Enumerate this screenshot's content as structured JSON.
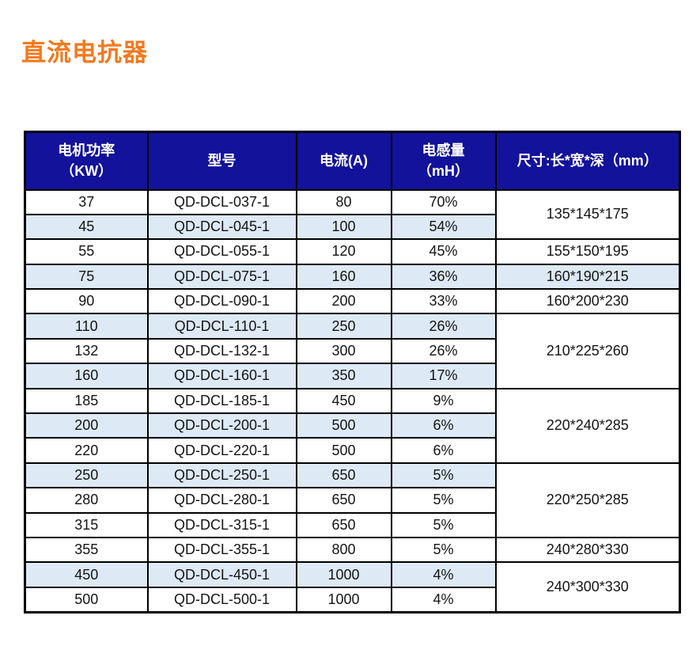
{
  "page": {
    "title": "直流电抗器"
  },
  "colors": {
    "title": "#F2791E",
    "header_bg": "#12129B",
    "header_text": "#FFFFFF",
    "alt_row_bg": "#DDE9F5",
    "border": "#000000"
  },
  "table": {
    "columns": [
      {
        "id": "power",
        "line1": "电机功率",
        "line2": "（KW）"
      },
      {
        "id": "model",
        "line1": "型号",
        "line2": ""
      },
      {
        "id": "current",
        "line1": "电流(A)",
        "line2": ""
      },
      {
        "id": "inductance",
        "line1": "电感量",
        "line2": "（mH）"
      },
      {
        "id": "size",
        "line1": "尺寸:长*宽*深（mm）",
        "line2": ""
      }
    ],
    "rows": [
      {
        "power": "37",
        "model": "QD-DCL-037-1",
        "current": "80",
        "inductance": "70%",
        "shaded": false,
        "size": {
          "text": "135*145*175",
          "rowspan": 2,
          "shaded": false
        }
      },
      {
        "power": "45",
        "model": "QD-DCL-045-1",
        "current": "100",
        "inductance": "54%",
        "shaded": true,
        "size": null
      },
      {
        "power": "55",
        "model": "QD-DCL-055-1",
        "current": "120",
        "inductance": "45%",
        "shaded": false,
        "size": {
          "text": "155*150*195",
          "rowspan": 1,
          "shaded": false
        }
      },
      {
        "power": "75",
        "model": "QD-DCL-075-1",
        "current": "160",
        "inductance": "36%",
        "shaded": true,
        "size": {
          "text": "160*190*215",
          "rowspan": 1,
          "shaded": true
        }
      },
      {
        "power": "90",
        "model": "QD-DCL-090-1",
        "current": "200",
        "inductance": "33%",
        "shaded": false,
        "size": {
          "text": "160*200*230",
          "rowspan": 1,
          "shaded": false
        }
      },
      {
        "power": "110",
        "model": "QD-DCL-110-1",
        "current": "250",
        "inductance": "26%",
        "shaded": true,
        "size": {
          "text": "210*225*260",
          "rowspan": 3,
          "shaded": false
        }
      },
      {
        "power": "132",
        "model": "QD-DCL-132-1",
        "current": "300",
        "inductance": "26%",
        "shaded": false,
        "size": null
      },
      {
        "power": "160",
        "model": "QD-DCL-160-1",
        "current": "350",
        "inductance": "17%",
        "shaded": true,
        "size": null
      },
      {
        "power": "185",
        "model": "QD-DCL-185-1",
        "current": "450",
        "inductance": "9%",
        "shaded": false,
        "size": {
          "text": "220*240*285",
          "rowspan": 3,
          "shaded": false
        }
      },
      {
        "power": "200",
        "model": "QD-DCL-200-1",
        "current": "500",
        "inductance": "6%",
        "shaded": true,
        "size": null
      },
      {
        "power": "220",
        "model": "QD-DCL-220-1",
        "current": "500",
        "inductance": "6%",
        "shaded": false,
        "size": null
      },
      {
        "power": "250",
        "model": "QD-DCL-250-1",
        "current": "650",
        "inductance": "5%",
        "shaded": true,
        "size": {
          "text": "220*250*285",
          "rowspan": 3,
          "shaded": false
        }
      },
      {
        "power": "280",
        "model": "QD-DCL-280-1",
        "current": "650",
        "inductance": "5%",
        "shaded": false,
        "size": null
      },
      {
        "power": "315",
        "model": "QD-DCL-315-1",
        "current": "650",
        "inductance": "5%",
        "shaded": false,
        "size": null
      },
      {
        "power": "355",
        "model": "QD-DCL-355-1",
        "current": "800",
        "inductance": "5%",
        "shaded": false,
        "size": {
          "text": "240*280*330",
          "rowspan": 1,
          "shaded": false
        }
      },
      {
        "power": "450",
        "model": "QD-DCL-450-1",
        "current": "1000",
        "inductance": "4%",
        "shaded": true,
        "size": {
          "text": "240*300*330",
          "rowspan": 2,
          "shaded": false
        }
      },
      {
        "power": "500",
        "model": "QD-DCL-500-1",
        "current": "1000",
        "inductance": "4%",
        "shaded": false,
        "size": null
      }
    ]
  }
}
